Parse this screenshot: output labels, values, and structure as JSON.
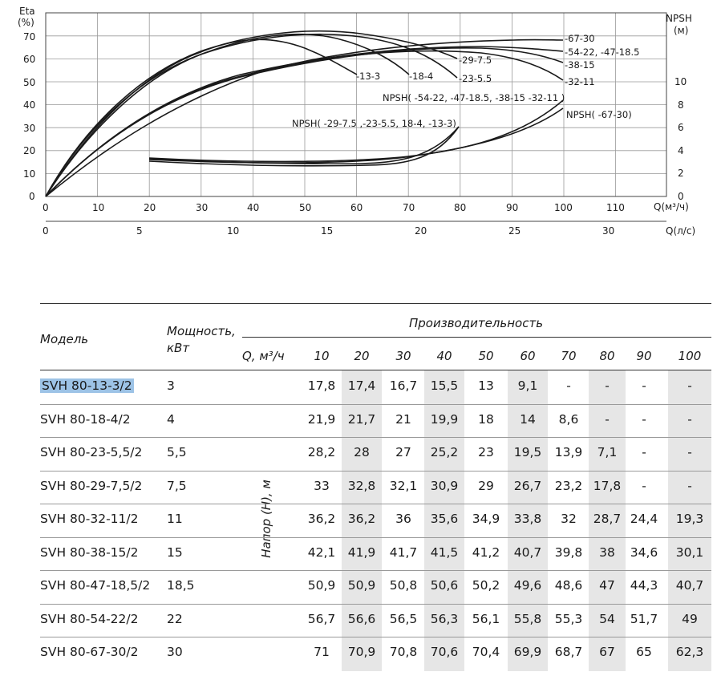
{
  "chart": {
    "eta_axis_label": "Eta",
    "eta_unit": "(%)",
    "npsh_axis_label": "NPSH",
    "npsh_unit": "(м)",
    "q_m3h_label": "Q(м³/ч)",
    "q_ls_label": "Q(л/с)",
    "eta_ticks": [
      "0",
      "10",
      "20",
      "30",
      "40",
      "50",
      "60",
      "70"
    ],
    "npsh_ticks": [
      "0",
      "2",
      "4",
      "6",
      "8",
      "10"
    ],
    "q_m3h_ticks": [
      "0",
      "10",
      "20",
      "30",
      "40",
      "50",
      "60",
      "70",
      "80",
      "90",
      "100",
      "110"
    ],
    "q_ls_ticks": [
      "0",
      "5",
      "10",
      "15",
      "20",
      "25",
      "30"
    ],
    "curve_labels": {
      "c6730": "-67-30",
      "c5422": "-54-22, -47-18.5",
      "c3815": "-38-15",
      "c3211": "-32-11",
      "c2975": "-29-7.5",
      "c2355": "-23-5.5",
      "c184": "-18-4",
      "c133": "-13-3",
      "npsh_big": "NPSH( -54-22, -47-18.5, -38-15 -32-11 )",
      "npsh_small": "NPSH( -29-7.5 ,-23-5.5, 18-4, -13-3)",
      "npsh_6730": "NPSH( -67-30)"
    }
  },
  "table": {
    "col_model": "Модель",
    "col_power_1": "Мощность,",
    "col_power_2": "кВт",
    "col_capacity": "Производительность",
    "col_q": "Q, м³/ч",
    "head_label": "Напор (H), м",
    "q_values": [
      "10",
      "20",
      "30",
      "40",
      "50",
      "60",
      "70",
      "80",
      "90",
      "100"
    ],
    "rows": [
      {
        "model": "SVH 80-13-3/2",
        "power": "3",
        "values": [
          "17,8",
          "17,4",
          "16,7",
          "15,5",
          "13",
          "9,1",
          "-",
          "-",
          "-",
          "-"
        ]
      },
      {
        "model": "SVH 80-18-4/2",
        "power": "4",
        "values": [
          "21,9",
          "21,7",
          "21",
          "19,9",
          "18",
          "14",
          "8,6",
          "-",
          "-",
          "-"
        ]
      },
      {
        "model": "SVH 80-23-5,5/2",
        "power": "5,5",
        "values": [
          "28,2",
          "28",
          "27",
          "25,2",
          "23",
          "19,5",
          "13,9",
          "7,1",
          "-",
          "-"
        ]
      },
      {
        "model": "SVH 80-29-7,5/2",
        "power": "7,5",
        "values": [
          "33",
          "32,8",
          "32,1",
          "30,9",
          "29",
          "26,7",
          "23,2",
          "17,8",
          "-",
          "-"
        ]
      },
      {
        "model": "SVH 80-32-11/2",
        "power": "11",
        "values": [
          "36,2",
          "36,2",
          "36",
          "35,6",
          "34,9",
          "33,8",
          "32",
          "28,7",
          "24,4",
          "19,3"
        ]
      },
      {
        "model": "SVH 80-38-15/2",
        "power": "15",
        "values": [
          "42,1",
          "41,9",
          "41,7",
          "41,5",
          "41,2",
          "40,7",
          "39,8",
          "38",
          "34,6",
          "30,1"
        ]
      },
      {
        "model": "SVH 80-47-18,5/2",
        "power": "18,5",
        "values": [
          "50,9",
          "50,9",
          "50,8",
          "50,6",
          "50,2",
          "49,6",
          "48,6",
          "47",
          "44,3",
          "40,7"
        ]
      },
      {
        "model": "SVH 80-54-22/2",
        "power": "22",
        "values": [
          "56,7",
          "56,6",
          "56,5",
          "56,3",
          "56,1",
          "55,8",
          "55,3",
          "54",
          "51,7",
          "49"
        ]
      },
      {
        "model": "SVH 80-67-30/2",
        "power": "30",
        "values": [
          "71",
          "70,9",
          "70,8",
          "70,6",
          "70,4",
          "69,9",
          "68,7",
          "67",
          "65",
          "62,3"
        ]
      }
    ]
  }
}
